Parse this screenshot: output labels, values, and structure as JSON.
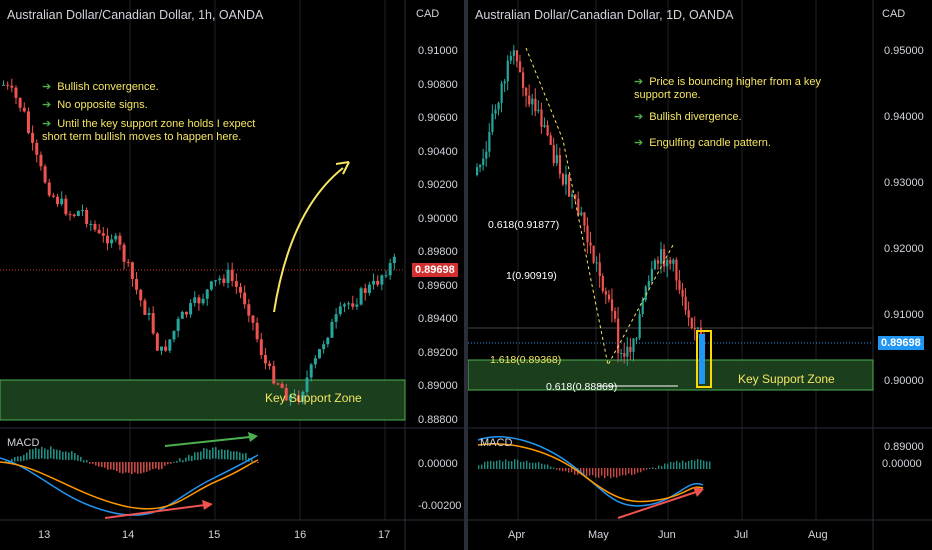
{
  "left": {
    "title": "Australian Dollar/Canadian Dollar, 1h, OANDA",
    "currency": "CAD",
    "price_ticks": [
      "0.91000",
      "0.90800",
      "0.90600",
      "0.90400",
      "0.90200",
      "0.90000",
      "0.89800",
      "0.89600",
      "0.89400",
      "0.89200",
      "0.89000",
      "0.88800"
    ],
    "current_price": "0.89698",
    "macd_ticks": [
      "0.00000",
      "-0.00200"
    ],
    "time_ticks": [
      "13",
      "14",
      "15",
      "16",
      "17"
    ],
    "notes": [
      "Bullish convergence.",
      "No opposite signs.",
      "Until the key support zone holds I expect short term bullish moves to happen here."
    ],
    "zone_label": "Key Support Zone",
    "macd_label": "MACD",
    "colors": {
      "up": "#26a69a",
      "down": "#ef5350",
      "zone": "#1e4620",
      "current": "#d32f2f"
    }
  },
  "right": {
    "title": "Australian Dollar/Canadian Dollar, 1D, OANDA",
    "currency": "CAD",
    "price_ticks": [
      "0.95000",
      "0.94000",
      "0.93000",
      "0.92000",
      "0.91000",
      "0.90000",
      "0.89000"
    ],
    "current_price": "0.89698",
    "macd_ticks": [
      "0.00000"
    ],
    "time_ticks": [
      "Apr",
      "May",
      "Jun",
      "Jul",
      "Aug"
    ],
    "notes": [
      "Price is bouncing higher from a key support zone.",
      "Bullish divergence.",
      "Engulfing candle pattern."
    ],
    "fib_labels": [
      "0.618(0.91877)",
      "1(0.90919)",
      "1.618(0.89368)",
      "0.618(0.88869)"
    ],
    "zone_label": "Key Support Zone",
    "macd_label": "MACD",
    "colors": {
      "up": "#26a69a",
      "down": "#ef5350",
      "zone": "#1e4620",
      "current": "#2196f3"
    }
  }
}
